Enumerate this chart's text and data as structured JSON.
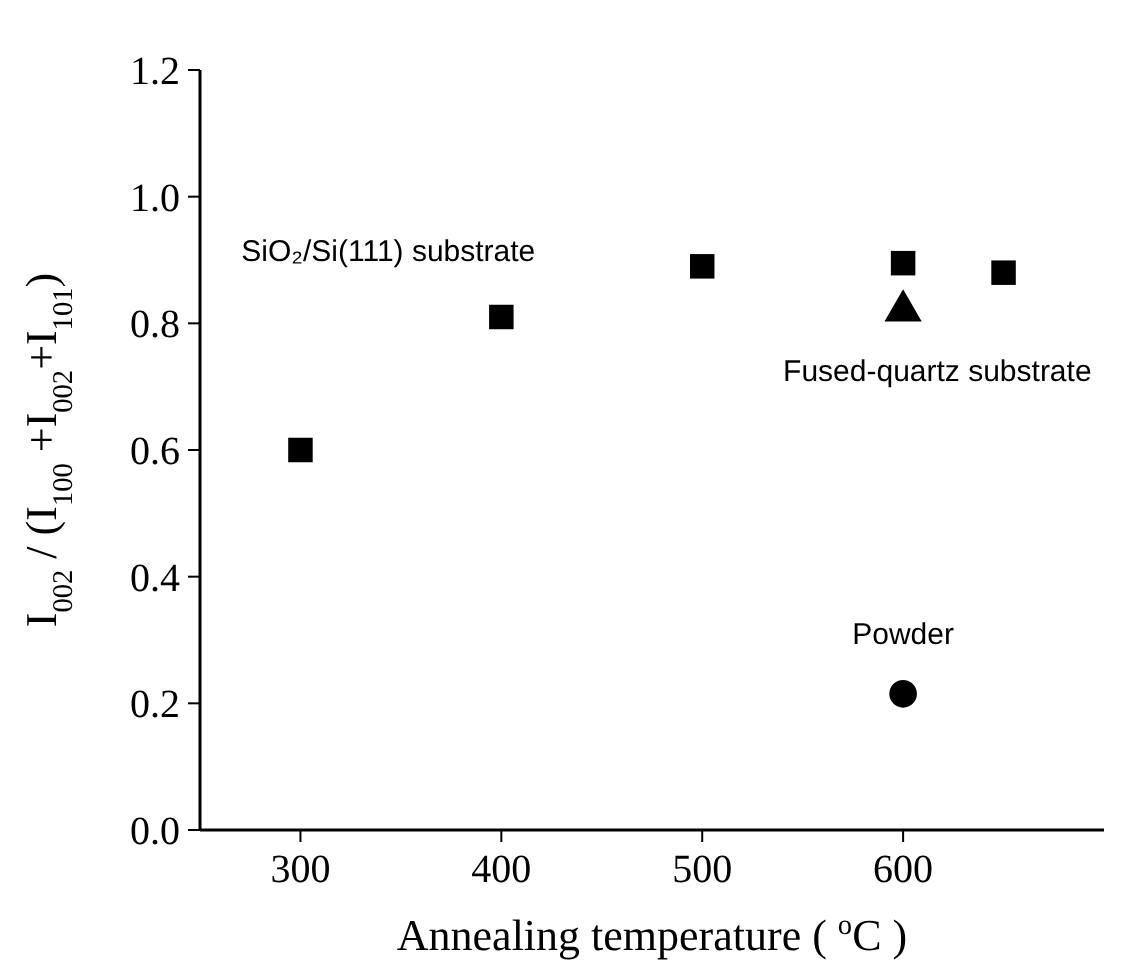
{
  "chart_data": {
    "type": "scatter",
    "xlabel": "Annealing temperature ( $^{o}$C )",
    "ylabel": "I$_{002}$ / (I$_{100}$ +I$_{002}$+I$_{101}$)",
    "xlim": [
      250,
      700
    ],
    "xticks": [
      300,
      400,
      500,
      600
    ],
    "ylim": [
      0,
      1.2
    ],
    "yticks": [
      {
        "value": 0,
        "label": "0.0"
      },
      {
        "value": 0.2,
        "label": "0.2"
      },
      {
        "value": 0.4,
        "label": "0.4"
      },
      {
        "value": 0.6,
        "label": "0.6"
      },
      {
        "value": 0.8,
        "label": "0.8"
      },
      {
        "value": 1,
        "label": "1.0"
      },
      {
        "value": 1.2,
        "label": "1.2"
      }
    ],
    "series": [
      {
        "name": "SiO₂/Si(111) substrate",
        "color": "#000000",
        "marker": "square",
        "x": [
          300,
          400,
          500,
          600,
          650
        ],
        "values": [
          0.6,
          0.81,
          0.89,
          0.895,
          0.88
        ]
      },
      {
        "name": "Fused-quartz substrate",
        "color": "#000000",
        "marker": "triangle",
        "x": [
          600
        ],
        "values": [
          0.82
        ]
      },
      {
        "name": "Powder",
        "color": "#000000",
        "marker": "circle",
        "x": [
          600
        ],
        "values": [
          0.215
        ]
      }
    ]
  }
}
